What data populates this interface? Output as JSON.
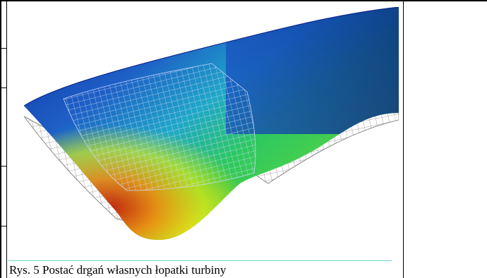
{
  "figure": {
    "caption": "Rys. 5 Postać drgań własnych łopatki turbiny",
    "colors": {
      "deep_blue": "#0a1f9a",
      "blue": "#1f63c9",
      "cyan": "#1fb7c4",
      "green": "#2ec23c",
      "yellow": "#d6e81a",
      "orange": "#f08a10",
      "red": "#c81e0c",
      "mesh": "#8a8a8a"
    }
  }
}
